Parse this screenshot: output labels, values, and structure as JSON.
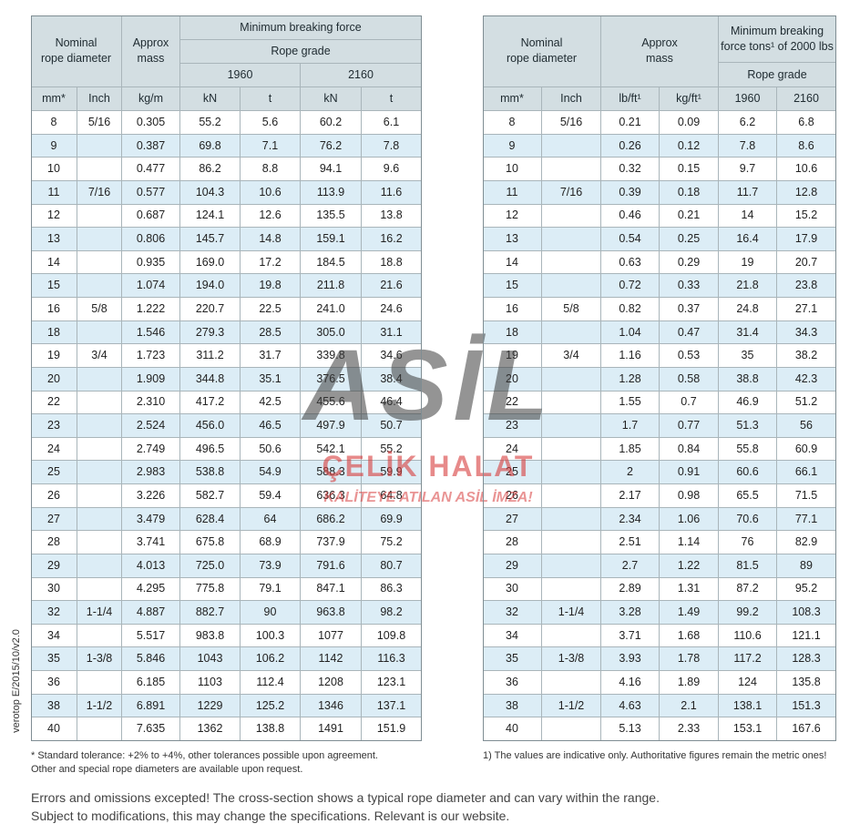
{
  "left_table": {
    "header": {
      "nominal": "Nominal\nrope diameter",
      "mass": "Approx\nmass",
      "force": "Minimum breaking force",
      "grade": "Rope grade",
      "grade_1": "1960",
      "grade_2": "2160"
    },
    "units": [
      "mm*",
      "Inch",
      "kg/m",
      "kN",
      "t",
      "kN",
      "t"
    ],
    "rows": [
      [
        "8",
        "5/16",
        "0.305",
        "55.2",
        "5.6",
        "60.2",
        "6.1"
      ],
      [
        "9",
        null,
        "0.387",
        "69.8",
        "7.1",
        "76.2",
        "7.8"
      ],
      [
        "10",
        null,
        "0.477",
        "86.2",
        "8.8",
        "94.1",
        "9.6"
      ],
      [
        "11",
        "7/16",
        "0.577",
        "104.3",
        "10.6",
        "113.9",
        "11.6"
      ],
      [
        "12",
        null,
        "0.687",
        "124.1",
        "12.6",
        "135.5",
        "13.8"
      ],
      [
        "13",
        null,
        "0.806",
        "145.7",
        "14.8",
        "159.1",
        "16.2"
      ],
      [
        "14",
        null,
        "0.935",
        "169.0",
        "17.2",
        "184.5",
        "18.8"
      ],
      [
        "15",
        null,
        "1.074",
        "194.0",
        "19.8",
        "211.8",
        "21.6"
      ],
      [
        "16",
        "5/8",
        "1.222",
        "220.7",
        "22.5",
        "241.0",
        "24.6"
      ],
      [
        "18",
        null,
        "1.546",
        "279.3",
        "28.5",
        "305.0",
        "31.1"
      ],
      [
        "19",
        "3/4",
        "1.723",
        "311.2",
        "31.7",
        "339.8",
        "34.6"
      ],
      [
        "20",
        null,
        "1.909",
        "344.8",
        "35.1",
        "376.5",
        "38.4"
      ],
      [
        "22",
        null,
        "2.310",
        "417.2",
        "42.5",
        "455.6",
        "46.4"
      ],
      [
        "23",
        null,
        "2.524",
        "456.0",
        "46.5",
        "497.9",
        "50.7"
      ],
      [
        "24",
        null,
        "2.749",
        "496.5",
        "50.6",
        "542.1",
        "55.2"
      ],
      [
        "25",
        null,
        "2.983",
        "538.8",
        "54.9",
        "588.3",
        "59.9"
      ],
      [
        "26",
        null,
        "3.226",
        "582.7",
        "59.4",
        "636.3",
        "64.8"
      ],
      [
        "27",
        null,
        "3.479",
        "628.4",
        "64",
        "686.2",
        "69.9"
      ],
      [
        "28",
        null,
        "3.741",
        "675.8",
        "68.9",
        "737.9",
        "75.2"
      ],
      [
        "29",
        null,
        "4.013",
        "725.0",
        "73.9",
        "791.6",
        "80.7"
      ],
      [
        "30",
        null,
        "4.295",
        "775.8",
        "79.1",
        "847.1",
        "86.3"
      ],
      [
        "32",
        "1-1/4",
        "4.887",
        "882.7",
        "90",
        "963.8",
        "98.2"
      ],
      [
        "34",
        null,
        "5.517",
        "983.8",
        "100.3",
        "1077",
        "109.8"
      ],
      [
        "35",
        "1-3/8",
        "5.846",
        "1043",
        "106.2",
        "1142",
        "116.3"
      ],
      [
        "36",
        null,
        "6.185",
        "1103",
        "112.4",
        "1208",
        "123.1"
      ],
      [
        "38",
        "1-1/2",
        "6.891",
        "1229",
        "125.2",
        "1346",
        "137.1"
      ],
      [
        "40",
        null,
        "7.635",
        "1362",
        "138.8",
        "1491",
        "151.9"
      ]
    ]
  },
  "right_table": {
    "header": {
      "nominal": "Nominal\nrope diameter",
      "mass": "Approx\nmass",
      "force": "Minimum breaking\nforce tons¹ of 2000 lbs",
      "grade": "Rope grade"
    },
    "units": [
      "mm*",
      "Inch",
      "lb/ft¹",
      "kg/ft¹",
      "1960",
      "2160"
    ],
    "rows": [
      [
        "8",
        "5/16",
        "0.21",
        "0.09",
        "6.2",
        "6.8"
      ],
      [
        "9",
        null,
        "0.26",
        "0.12",
        "7.8",
        "8.6"
      ],
      [
        "10",
        null,
        "0.32",
        "0.15",
        "9.7",
        "10.6"
      ],
      [
        "11",
        "7/16",
        "0.39",
        "0.18",
        "11.7",
        "12.8"
      ],
      [
        "12",
        null,
        "0.46",
        "0.21",
        "14",
        "15.2"
      ],
      [
        "13",
        null,
        "0.54",
        "0.25",
        "16.4",
        "17.9"
      ],
      [
        "14",
        null,
        "0.63",
        "0.29",
        "19",
        "20.7"
      ],
      [
        "15",
        null,
        "0.72",
        "0.33",
        "21.8",
        "23.8"
      ],
      [
        "16",
        "5/8",
        "0.82",
        "0.37",
        "24.8",
        "27.1"
      ],
      [
        "18",
        null,
        "1.04",
        "0.47",
        "31.4",
        "34.3"
      ],
      [
        "19",
        "3/4",
        "1.16",
        "0.53",
        "35",
        "38.2"
      ],
      [
        "20",
        null,
        "1.28",
        "0.58",
        "38.8",
        "42.3"
      ],
      [
        "22",
        null,
        "1.55",
        "0.7",
        "46.9",
        "51.2"
      ],
      [
        "23",
        null,
        "1.7",
        "0.77",
        "51.3",
        "56"
      ],
      [
        "24",
        null,
        "1.85",
        "0.84",
        "55.8",
        "60.9"
      ],
      [
        "25",
        null,
        "2",
        "0.91",
        "60.6",
        "66.1"
      ],
      [
        "26",
        null,
        "2.17",
        "0.98",
        "65.5",
        "71.5"
      ],
      [
        "27",
        null,
        "2.34",
        "1.06",
        "70.6",
        "77.1"
      ],
      [
        "28",
        null,
        "2.51",
        "1.14",
        "76",
        "82.9"
      ],
      [
        "29",
        null,
        "2.7",
        "1.22",
        "81.5",
        "89"
      ],
      [
        "30",
        null,
        "2.89",
        "1.31",
        "87.2",
        "95.2"
      ],
      [
        "32",
        "1-1/4",
        "3.28",
        "1.49",
        "99.2",
        "108.3"
      ],
      [
        "34",
        null,
        "3.71",
        "1.68",
        "110.6",
        "121.1"
      ],
      [
        "35",
        "1-3/8",
        "3.93",
        "1.78",
        "117.2",
        "128.3"
      ],
      [
        "36",
        null,
        "4.16",
        "1.89",
        "124",
        "135.8"
      ],
      [
        "38",
        "1-1/2",
        "4.63",
        "2.1",
        "138.1",
        "151.3"
      ],
      [
        "40",
        null,
        "5.13",
        "2.33",
        "153.1",
        "167.6"
      ]
    ]
  },
  "footnotes": {
    "left_1": "* Standard tolerance: +2% to +4%, other tolerances possible upon agreement.",
    "left_2": "Other and special rope diameters are available upon request.",
    "right": "1) The values are indicative only. Authoritative figures remain the metric ones!"
  },
  "disclaimer": [
    "Errors and omissions excepted! The cross-section shows a typical rope diameter and can vary within the range.",
    "Subject to modifications, this may change the specifications. Relevant is our website."
  ],
  "side_label": "verotop E/2015/10/v2.0",
  "watermark": {
    "brand": "ASİL",
    "name": "ÇELİK HALAT",
    "slogan": "KALİTEYE ATILAN ASİL İMZA!"
  }
}
